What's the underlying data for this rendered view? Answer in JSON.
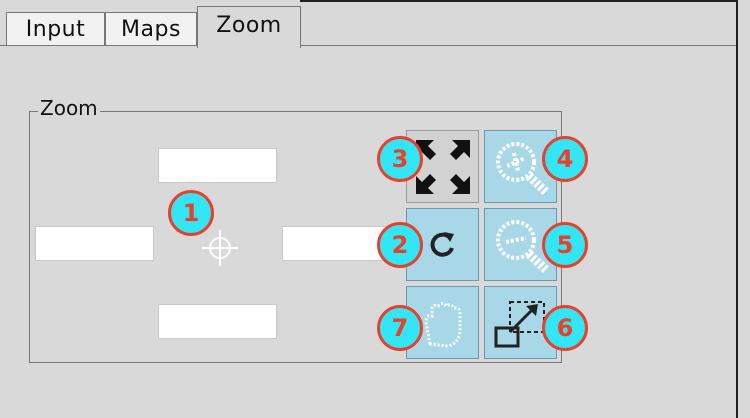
{
  "tabs": [
    {
      "label": "Input",
      "active": false
    },
    {
      "label": "Maps",
      "active": false
    },
    {
      "label": "Zoom",
      "active": true
    }
  ],
  "zoom_group": {
    "title": "Zoom",
    "fields": {
      "top": "",
      "left": "",
      "right": "",
      "bottom": ""
    },
    "buttons": [
      {
        "icon": "zoom-to-full-extent-icon",
        "badge": "3"
      },
      {
        "icon": "zoom-in-icon",
        "badge": "4"
      },
      {
        "icon": "refresh-icon",
        "badge": "2"
      },
      {
        "icon": "zoom-out-icon",
        "badge": "5"
      },
      {
        "icon": "pan-hand-icon",
        "badge": "7"
      },
      {
        "icon": "zoom-to-box-icon",
        "badge": "6"
      }
    ],
    "center_badge": "1"
  },
  "colors": {
    "background": "#d9d9d9",
    "button_fill": "#a8d8e8",
    "badge_fill": "#33e6f5",
    "badge_border": "#e8402a"
  }
}
